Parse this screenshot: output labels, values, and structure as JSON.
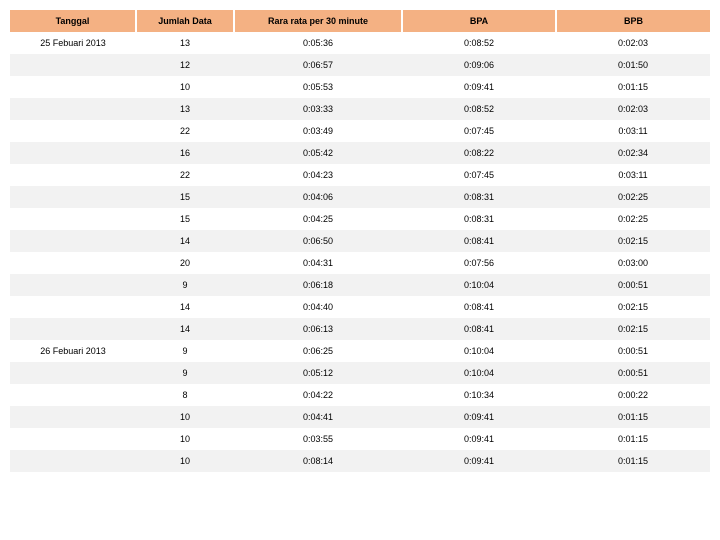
{
  "table": {
    "header_bg": "#f4b183",
    "alt_row_bg": "#f2f2f2",
    "columns": [
      "Tanggal",
      "Jumlah Data",
      "Rara rata per 30 minute",
      "BPA",
      "BPB"
    ],
    "rows": [
      {
        "tanggal": "25 Febuari 2013",
        "jumlah": "13",
        "rata": "0:05:36",
        "bpa": "0:08:52",
        "bpb": "0:02:03"
      },
      {
        "tanggal": "",
        "jumlah": "12",
        "rata": "0:06:57",
        "bpa": "0:09:06",
        "bpb": "0:01:50"
      },
      {
        "tanggal": "",
        "jumlah": "10",
        "rata": "0:05:53",
        "bpa": "0:09:41",
        "bpb": "0:01:15"
      },
      {
        "tanggal": "",
        "jumlah": "13",
        "rata": "0:03:33",
        "bpa": "0:08:52",
        "bpb": "0:02:03"
      },
      {
        "tanggal": "",
        "jumlah": "22",
        "rata": "0:03:49",
        "bpa": "0:07:45",
        "bpb": "0:03:11"
      },
      {
        "tanggal": "",
        "jumlah": "16",
        "rata": "0:05:42",
        "bpa": "0:08:22",
        "bpb": "0:02:34"
      },
      {
        "tanggal": "",
        "jumlah": "22",
        "rata": "0:04:23",
        "bpa": "0:07:45",
        "bpb": "0:03:11"
      },
      {
        "tanggal": "",
        "jumlah": "15",
        "rata": "0:04:06",
        "bpa": "0:08:31",
        "bpb": "0:02:25"
      },
      {
        "tanggal": "",
        "jumlah": "15",
        "rata": "0:04:25",
        "bpa": "0:08:31",
        "bpb": "0:02:25"
      },
      {
        "tanggal": "",
        "jumlah": "14",
        "rata": "0:06:50",
        "bpa": "0:08:41",
        "bpb": "0:02:15"
      },
      {
        "tanggal": "",
        "jumlah": "20",
        "rata": "0:04:31",
        "bpa": "0:07:56",
        "bpb": "0:03:00"
      },
      {
        "tanggal": "",
        "jumlah": "9",
        "rata": "0:06:18",
        "bpa": "0:10:04",
        "bpb": "0:00:51"
      },
      {
        "tanggal": "",
        "jumlah": "14",
        "rata": "0:04:40",
        "bpa": "0:08:41",
        "bpb": "0:02:15"
      },
      {
        "tanggal": "",
        "jumlah": "14",
        "rata": "0:06:13",
        "bpa": "0:08:41",
        "bpb": "0:02:15"
      },
      {
        "tanggal": "26 Febuari 2013",
        "jumlah": "9",
        "rata": "0:06:25",
        "bpa": "0:10:04",
        "bpb": "0:00:51"
      },
      {
        "tanggal": "",
        "jumlah": "9",
        "rata": "0:05:12",
        "bpa": "0:10:04",
        "bpb": "0:00:51"
      },
      {
        "tanggal": "",
        "jumlah": "8",
        "rata": "0:04:22",
        "bpa": "0:10:34",
        "bpb": "0:00:22"
      },
      {
        "tanggal": "",
        "jumlah": "10",
        "rata": "0:04:41",
        "bpa": "0:09:41",
        "bpb": "0:01:15"
      },
      {
        "tanggal": "",
        "jumlah": "10",
        "rata": "0:03:55",
        "bpa": "0:09:41",
        "bpb": "0:01:15"
      },
      {
        "tanggal": "",
        "jumlah": "10",
        "rata": "0:08:14",
        "bpa": "0:09:41",
        "bpb": "0:01:15"
      }
    ]
  }
}
